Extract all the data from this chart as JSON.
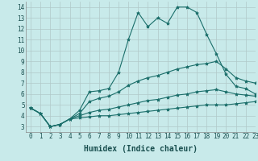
{
  "bg_color": "#c8eaea",
  "grid_color": "#b0c8c8",
  "line_color": "#1a6e6a",
  "xlabel": "Humidex (Indice chaleur)",
  "xlabel_fontsize": 7,
  "xlabel_color": "#1a5050",
  "ylim": [
    2.5,
    14.5
  ],
  "xlim": [
    -0.5,
    23
  ],
  "yticks": [
    3,
    4,
    5,
    6,
    7,
    8,
    9,
    10,
    11,
    12,
    13,
    14
  ],
  "xticks": [
    0,
    1,
    2,
    3,
    4,
    5,
    6,
    7,
    8,
    9,
    10,
    11,
    12,
    13,
    14,
    15,
    16,
    17,
    18,
    19,
    20,
    21,
    22,
    23
  ],
  "tick_fontsize": 5.5,
  "tick_color": "#1a5050",
  "series": [
    [
      4.7,
      4.2,
      3.0,
      3.2,
      3.7,
      4.5,
      6.2,
      6.3,
      6.5,
      8.0,
      11.0,
      13.5,
      12.2,
      13.0,
      12.5,
      14.0,
      14.0,
      13.5,
      11.5,
      9.7,
      7.8,
      6.7,
      6.5,
      6.0
    ],
    [
      4.7,
      4.2,
      3.0,
      3.2,
      3.7,
      4.2,
      5.3,
      5.6,
      5.8,
      6.2,
      6.8,
      7.2,
      7.5,
      7.7,
      8.0,
      8.3,
      8.5,
      8.7,
      8.8,
      9.0,
      8.3,
      7.5,
      7.2,
      7.0
    ],
    [
      4.7,
      4.2,
      3.0,
      3.2,
      3.7,
      4.0,
      4.3,
      4.5,
      4.6,
      4.8,
      5.0,
      5.2,
      5.4,
      5.5,
      5.7,
      5.9,
      6.0,
      6.2,
      6.3,
      6.4,
      6.2,
      6.0,
      5.9,
      5.8
    ],
    [
      4.7,
      4.2,
      3.0,
      3.2,
      3.7,
      3.8,
      3.9,
      4.0,
      4.0,
      4.1,
      4.2,
      4.3,
      4.4,
      4.5,
      4.6,
      4.7,
      4.8,
      4.9,
      5.0,
      5.0,
      5.0,
      5.1,
      5.2,
      5.3
    ]
  ]
}
